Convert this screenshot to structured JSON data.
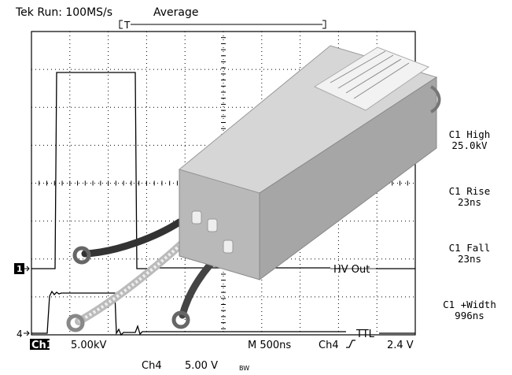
{
  "header": {
    "run": "Tek Run: 100MS/s",
    "mode": "Average"
  },
  "trigger": {
    "label": "T"
  },
  "traces": {
    "hv": "HV Out",
    "ttl": "TTL"
  },
  "markers": {
    "ch1": "1",
    "ch4": "4"
  },
  "measurements": [
    {
      "name": "C1 High",
      "value": "25.0kV"
    },
    {
      "name": "C1 Rise",
      "value": "23ns"
    },
    {
      "name": "C1 Fall",
      "value": "23ns"
    },
    {
      "name": "C1 +Width",
      "value": "996ns"
    }
  ],
  "status": {
    "ch1": "Ch1",
    "ch1_scale": "5.00kV",
    "timebase": "M 500ns",
    "trigger_source": "Ch4",
    "trigger_level": "2.4 V",
    "ch4": "Ch4",
    "ch4_scale": "5.00 V",
    "bandwidth": "BW"
  }
}
